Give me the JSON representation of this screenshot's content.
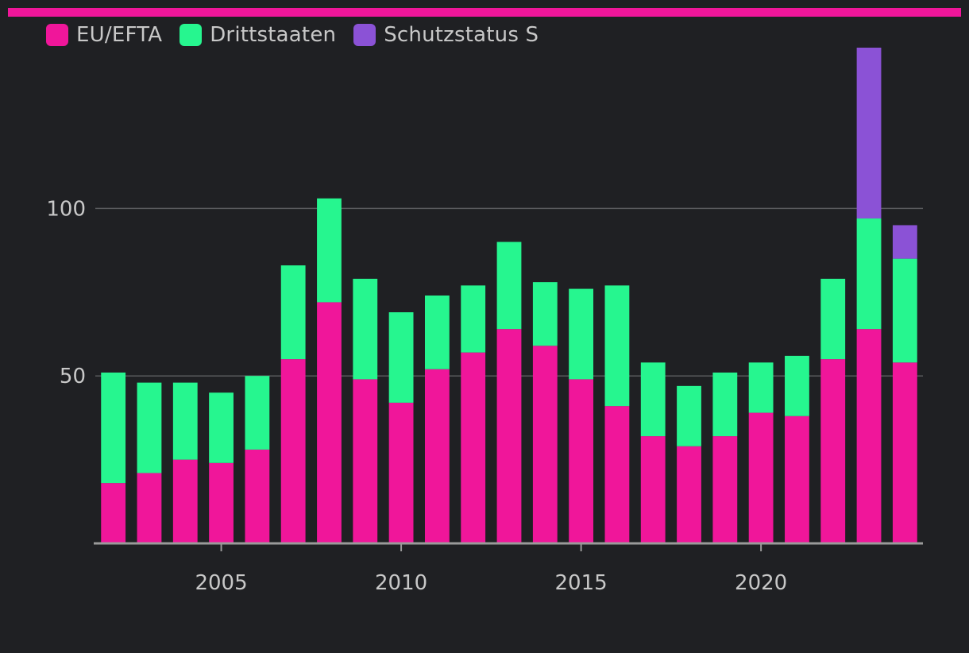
{
  "colors": {
    "accent": "#f0169a",
    "eu_efta": "#f0169a",
    "drittstaaten": "#26f68f",
    "schutzstatus": "#8b52d6",
    "grid": "#5a5b5e",
    "axis": "#9a9a9a",
    "text": "#c8c8c8",
    "background": "#1f2023"
  },
  "legend": [
    {
      "label": "EU/EFTA",
      "color": "#f0169a"
    },
    {
      "label": "Drittstaaten",
      "color": "#26f68f"
    },
    {
      "label": "Schutzstatus S",
      "color": "#8b52d6"
    }
  ],
  "chart_data": {
    "type": "bar",
    "stacked": true,
    "title": "",
    "xlabel": "",
    "ylabel": "",
    "categories": [
      2002,
      2003,
      2004,
      2005,
      2006,
      2007,
      2008,
      2009,
      2010,
      2011,
      2012,
      2013,
      2014,
      2015,
      2016,
      2017,
      2018,
      2019,
      2020,
      2021,
      2022,
      2023,
      2024
    ],
    "series": [
      {
        "name": "EU/EFTA",
        "color": "#f0169a",
        "values": [
          18,
          21,
          25,
          24,
          28,
          55,
          72,
          49,
          42,
          52,
          57,
          64,
          59,
          49,
          41,
          32,
          29,
          32,
          39,
          38,
          55,
          64,
          54
        ]
      },
      {
        "name": "Drittstaaten",
        "color": "#26f68f",
        "values": [
          33,
          27,
          23,
          21,
          22,
          28,
          31,
          30,
          27,
          22,
          20,
          26,
          19,
          27,
          36,
          22,
          18,
          19,
          15,
          18,
          24,
          33,
          31
        ]
      },
      {
        "name": "Schutzstatus S",
        "color": "#8b52d6",
        "values": [
          0,
          0,
          0,
          0,
          0,
          0,
          0,
          0,
          0,
          0,
          0,
          0,
          0,
          0,
          0,
          0,
          0,
          0,
          0,
          0,
          0,
          51,
          10
        ]
      }
    ],
    "y_ticks": [
      50,
      100
    ],
    "y_tick_labels": [
      "50",
      "100"
    ],
    "x_ticks": [
      2005,
      2010,
      2015,
      2020
    ],
    "x_tick_labels": [
      "2005",
      "2010",
      "2015",
      "2020"
    ],
    "ylim": [
      0,
      148
    ],
    "xlim": [
      2001.5,
      2024.5
    ],
    "grid": true,
    "legend_position": "top-left"
  }
}
